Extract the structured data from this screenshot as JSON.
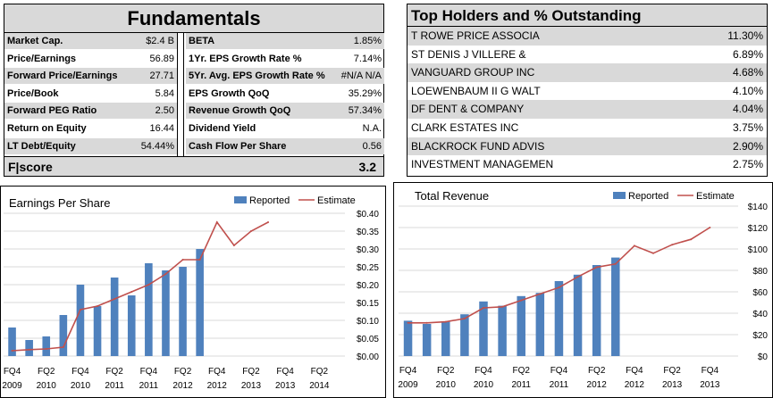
{
  "fundamentals": {
    "title": "Fundamentals",
    "left": [
      {
        "label": "Market Cap.",
        "value": "$2.4 B"
      },
      {
        "label": "Price/Earnings",
        "value": "56.89"
      },
      {
        "label": "Forward Price/Earnings",
        "value": "27.71"
      },
      {
        "label": "Price/Book",
        "value": "5.84"
      },
      {
        "label": "Forward PEG Ratio",
        "value": "2.50"
      },
      {
        "label": "Return on Equity",
        "value": "16.44"
      },
      {
        "label": "LT Debt/Equity",
        "value": "54.44%"
      }
    ],
    "right": [
      {
        "label": "BETA",
        "value": "1.85%"
      },
      {
        "label": "1Yr. EPS Growth Rate %",
        "value": "7.14%"
      },
      {
        "label": "5Yr. Avg. EPS Growth Rate %",
        "value": "#N/A N/A"
      },
      {
        "label": "EPS Growth QoQ",
        "value": "35.29%"
      },
      {
        "label": "Revenue Growth QoQ",
        "value": "57.34%"
      },
      {
        "label": "Dividend Yield",
        "value": "N.A."
      },
      {
        "label": "Cash Flow Per Share",
        "value": "0.56"
      }
    ],
    "score_label": "F|score",
    "score_value": "3.2"
  },
  "holders": {
    "title": "Top Holders and % Outstanding",
    "rows": [
      {
        "name": "T ROWE PRICE ASSOCIA",
        "pct": "11.30%"
      },
      {
        "name": "ST DENIS J VILLERE &",
        "pct": "6.89%"
      },
      {
        "name": "VANGUARD GROUP INC",
        "pct": "4.68%"
      },
      {
        "name": "LOEWENBAUM II G WALT",
        "pct": "4.10%"
      },
      {
        "name": "DF DENT & COMPANY",
        "pct": "4.04%"
      },
      {
        "name": "CLARK ESTATES INC",
        "pct": "3.75%"
      },
      {
        "name": "BLACKROCK FUND ADVIS",
        "pct": "2.90%"
      },
      {
        "name": "INVESTMENT MANAGEMEN",
        "pct": "2.75%"
      }
    ]
  },
  "colors": {
    "bar": "#4f81bd",
    "line": "#c0504d",
    "shade": "#d9d9d9",
    "grid": "#d9d9d9"
  },
  "chart_data": [
    {
      "type": "bar",
      "title": "Earnings Per Share",
      "legend": {
        "position": "top-right",
        "bar_label": "Reported",
        "line_label": "Estimate"
      },
      "x_tick_labels": [
        {
          "q": "FQ4",
          "y": "2009"
        },
        {
          "q": "FQ2",
          "y": "2010"
        },
        {
          "q": "FQ4",
          "y": "2010"
        },
        {
          "q": "FQ2",
          "y": "2011"
        },
        {
          "q": "FQ4",
          "y": "2011"
        },
        {
          "q": "FQ2",
          "y": "2012"
        },
        {
          "q": "FQ4",
          "y": "2012"
        },
        {
          "q": "FQ2",
          "y": "2013"
        },
        {
          "q": "FQ4",
          "y": "2013"
        },
        {
          "q": "FQ2",
          "y": "2014"
        }
      ],
      "y_tick_labels": [
        "$0.00",
        "$0.05",
        "$0.10",
        "$0.15",
        "$0.20",
        "$0.25",
        "$0.30",
        "$0.35",
        "$0.40"
      ],
      "ylim": [
        0,
        0.4
      ],
      "y_axis_side": "right",
      "grid": true,
      "n_quarters": 20,
      "series": [
        {
          "name": "Reported",
          "kind": "bar",
          "values": [
            0.08,
            0.045,
            0.055,
            0.115,
            0.2,
            0.14,
            0.22,
            0.17,
            0.26,
            0.24,
            0.25,
            0.3
          ]
        },
        {
          "name": "Estimate",
          "kind": "line",
          "values": [
            0.015,
            0.018,
            0.02,
            0.025,
            0.13,
            0.14,
            0.16,
            0.18,
            0.2,
            0.23,
            0.27,
            0.27,
            0.375,
            0.31,
            0.35,
            0.375
          ]
        }
      ]
    },
    {
      "type": "bar",
      "title": "Total Revenue",
      "legend": {
        "position": "top-right",
        "bar_label": "Reported",
        "line_label": "Estimate"
      },
      "x_tick_labels": [
        {
          "q": "FQ4",
          "y": "2009"
        },
        {
          "q": "FQ2",
          "y": "2010"
        },
        {
          "q": "FQ4",
          "y": "2010"
        },
        {
          "q": "FQ2",
          "y": "2011"
        },
        {
          "q": "FQ4",
          "y": "2011"
        },
        {
          "q": "FQ2",
          "y": "2012"
        },
        {
          "q": "FQ4",
          "y": "2012"
        },
        {
          "q": "FQ2",
          "y": "2013"
        },
        {
          "q": "FQ4",
          "y": "2013"
        }
      ],
      "y_tick_labels": [
        "$0",
        "$20",
        "$40",
        "$60",
        "$80",
        "$100",
        "$120",
        "$140"
      ],
      "ylim": [
        0,
        140
      ],
      "y_axis_side": "right",
      "grid": true,
      "n_quarters": 18,
      "series": [
        {
          "name": "Reported",
          "kind": "bar",
          "values": [
            33,
            30,
            32,
            39,
            51,
            47,
            56,
            59,
            70,
            76,
            85,
            92
          ]
        },
        {
          "name": "Estimate",
          "kind": "line",
          "values": [
            31,
            31,
            32,
            35,
            45,
            46,
            52,
            58,
            64,
            74,
            83,
            86,
            103,
            96,
            104,
            109,
            120
          ]
        }
      ]
    }
  ]
}
